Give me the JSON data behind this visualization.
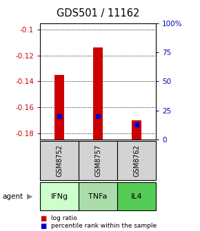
{
  "title": "GDS501 / 11162",
  "samples": [
    "GSM8752",
    "GSM8757",
    "GSM8762"
  ],
  "agents": [
    "IFNg",
    "TNFa",
    "IL4"
  ],
  "log_ratios": [
    -0.135,
    -0.114,
    -0.17
  ],
  "percentile_ranks": [
    20.0,
    20.0,
    13.0
  ],
  "ylim_left": [
    -0.185,
    -0.095
  ],
  "ylim_right": [
    0,
    100
  ],
  "yticks_left": [
    -0.18,
    -0.16,
    -0.14,
    -0.12,
    -0.1
  ],
  "yticks_right": [
    0,
    25,
    50,
    75,
    100
  ],
  "ytick_labels_right": [
    "0",
    "25",
    "50",
    "75",
    "100%"
  ],
  "bar_color": "#cc0000",
  "percentile_color": "#0000cc",
  "sample_bg_color": "#d3d3d3",
  "agent_colors": [
    "#ccffcc",
    "#aaddaa",
    "#55cc55"
  ],
  "left_axis_color": "#cc0000",
  "right_axis_color": "#0000bb",
  "legend_log_ratio_color": "#cc0000",
  "legend_percentile_color": "#0000cc",
  "bar_width": 0.25
}
